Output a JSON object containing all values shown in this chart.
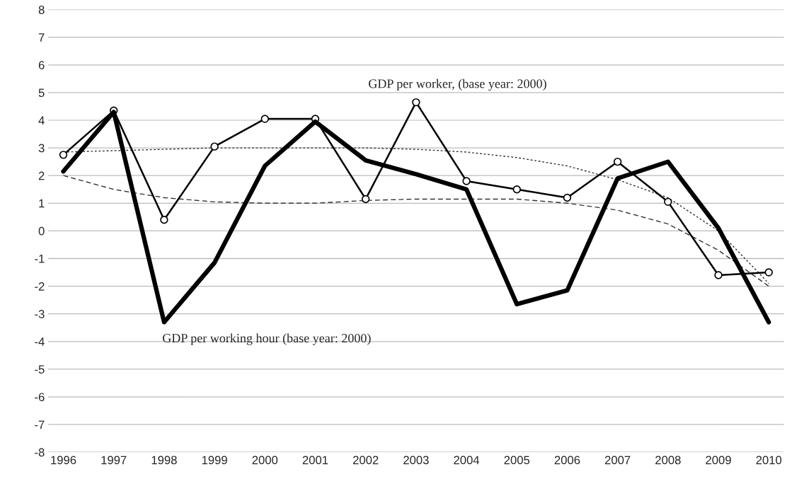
{
  "chart_data": {
    "type": "line",
    "categories": [
      "1996",
      "1997",
      "1998",
      "1999",
      "2000",
      "2001",
      "2002",
      "2003",
      "2004",
      "2005",
      "2006",
      "2007",
      "2008",
      "2009",
      "2010"
    ],
    "series": [
      {
        "color": "#000000",
        "marker": "circle",
        "line_style": "solid",
        "values": [
          2.75,
          4.35,
          0.4,
          3.05,
          4.05,
          4.05,
          1.15,
          4.65,
          1.8,
          1.5,
          1.2,
          2.5,
          1.05,
          -1.6,
          -1.5
        ]
      },
      {
        "color": "#000000",
        "marker": "none",
        "line_style": "solid",
        "values": [
          2.15,
          4.3,
          -3.3,
          -1.15,
          2.35,
          3.95,
          2.55,
          2.05,
          1.5,
          -2.65,
          -2.15,
          1.9,
          2.5,
          0.1,
          -3.3
        ]
      },
      {
        "color": "#333333",
        "marker": "none",
        "line_style": "dotted",
        "values": [
          2.85,
          2.9,
          2.95,
          3.0,
          3.0,
          3.0,
          3.0,
          2.95,
          2.85,
          2.65,
          2.35,
          1.85,
          1.2,
          0.0,
          -1.9
        ]
      },
      {
        "color": "#333333",
        "marker": "none",
        "line_style": "dashed",
        "values": [
          2.0,
          1.5,
          1.2,
          1.05,
          1.0,
          1.0,
          1.1,
          1.15,
          1.15,
          1.15,
          1.0,
          0.75,
          0.25,
          -0.7,
          -2.0
        ]
      }
    ],
    "ylim": [
      -8,
      8
    ],
    "yticks": [
      -8,
      -7,
      -6,
      -5,
      -4,
      -3,
      -2,
      -1,
      0,
      1,
      2,
      3,
      4,
      5,
      6,
      7,
      8
    ],
    "grid": "y",
    "legend": false,
    "annotations": [
      "GDP per worker, (base year: 2000)",
      "GDP per working hour (base year: 2000)"
    ]
  }
}
